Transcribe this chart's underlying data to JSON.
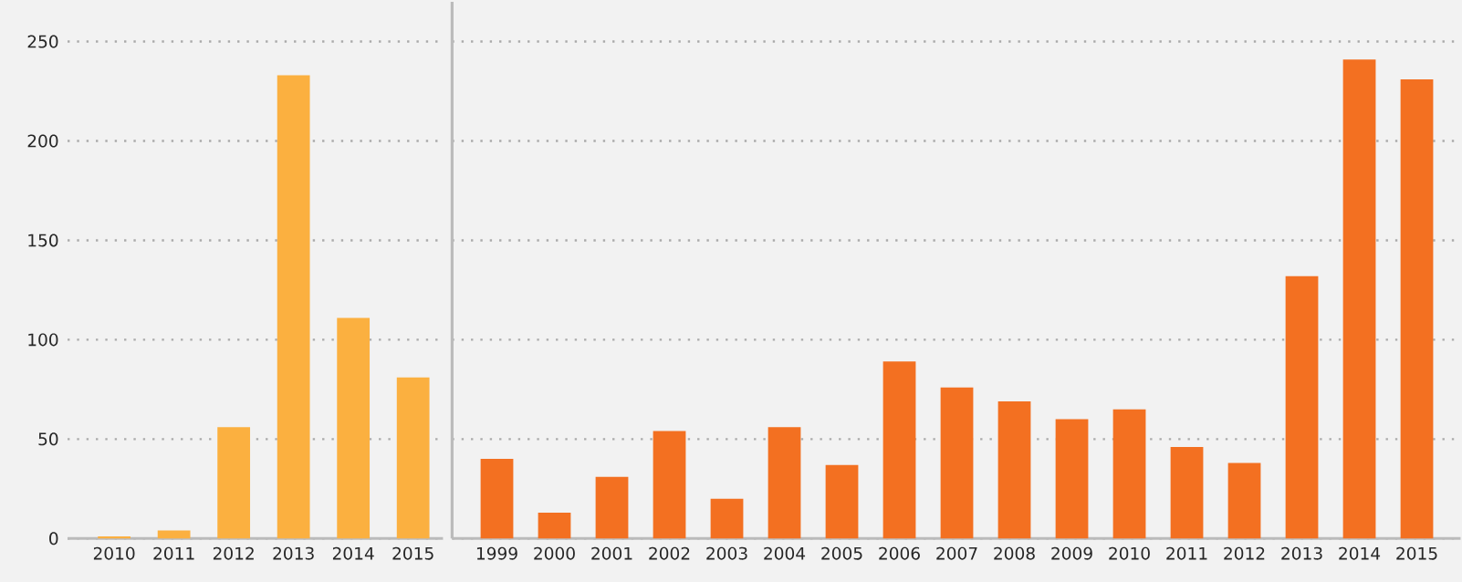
{
  "chart_data": [
    {
      "type": "bar",
      "categories": [
        "2010",
        "2011",
        "2012",
        "2013",
        "2014",
        "2015"
      ],
      "values": [
        1,
        4,
        56,
        233,
        111,
        81
      ],
      "color": "#fbb040",
      "ylim": [
        0,
        270
      ],
      "yticks": [
        0,
        50,
        100,
        150,
        200,
        250
      ],
      "grid": "y"
    },
    {
      "type": "bar",
      "categories": [
        "1999",
        "2000",
        "2001",
        "2002",
        "2003",
        "2004",
        "2005",
        "2006",
        "2007",
        "2008",
        "2009",
        "2010",
        "2011",
        "2012",
        "2013",
        "2014",
        "2015"
      ],
      "values": [
        40,
        13,
        31,
        54,
        20,
        56,
        37,
        89,
        76,
        69,
        60,
        65,
        46,
        38,
        132,
        241,
        231
      ],
      "color": "#f37021",
      "ylim": [
        0,
        270
      ],
      "yticks": [
        0,
        50,
        100,
        150,
        200,
        250
      ],
      "grid": "y",
      "tick_labels": "x"
    }
  ]
}
